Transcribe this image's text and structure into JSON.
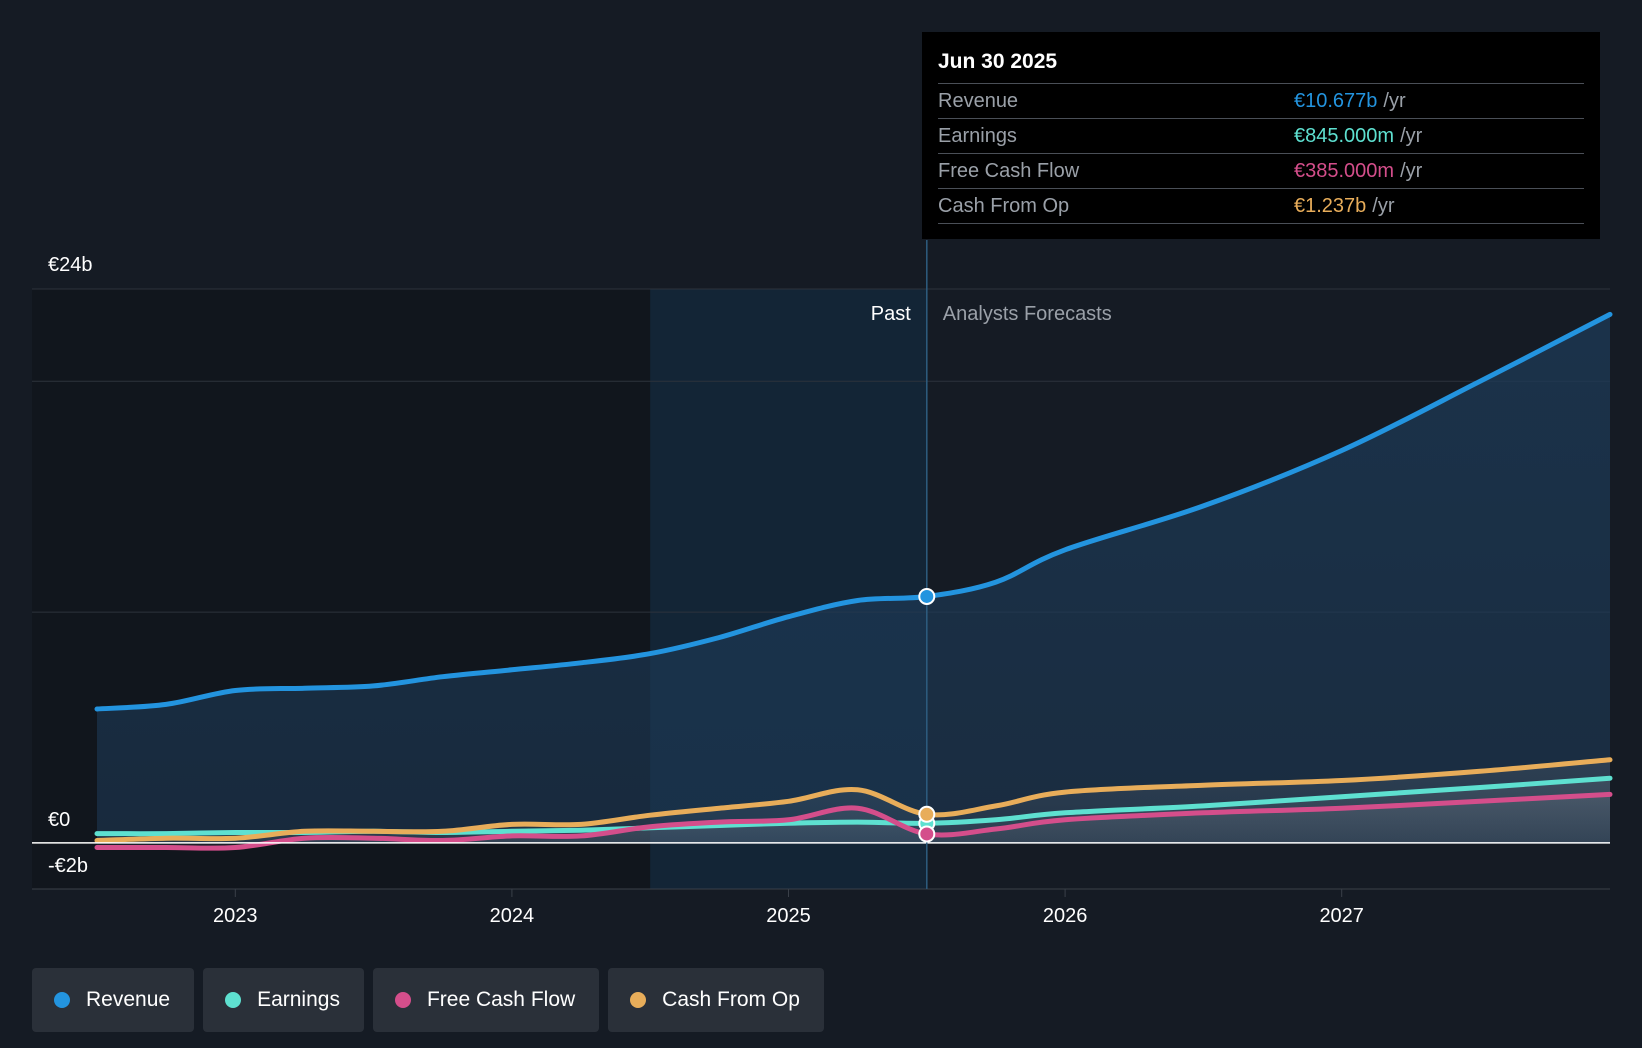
{
  "chart_data": {
    "type": "line",
    "currency": "€",
    "y_axis": {
      "top_label": "€24b",
      "zero_label": "€0",
      "bottom_label": "-€2b",
      "ylim": [
        -2,
        24
      ]
    },
    "x_axis": {
      "ticks": [
        "2023",
        "2024",
        "2025",
        "2026",
        "2027"
      ],
      "xlim": [
        2022.5,
        2027.97
      ]
    },
    "regions": {
      "past_label": "Past",
      "forecast_label": "Analysts Forecasts",
      "past_highlight_start": 2024.5,
      "divider": 2025.5
    },
    "series": [
      {
        "name": "Revenue",
        "color": "#2394df",
        "x": [
          2022.5,
          2022.75,
          2023.0,
          2023.25,
          2023.5,
          2023.75,
          2024.0,
          2024.25,
          2024.5,
          2024.75,
          2025.0,
          2025.25,
          2025.5,
          2025.75,
          2026.0,
          2026.5,
          2027.0,
          2027.5,
          2027.97
        ],
        "values": [
          5.8,
          6.0,
          6.6,
          6.7,
          6.8,
          7.2,
          7.5,
          7.8,
          8.2,
          8.9,
          9.8,
          10.5,
          10.677,
          11.3,
          12.7,
          14.6,
          17.0,
          20.0,
          22.9
        ]
      },
      {
        "name": "Earnings",
        "color": "#5ee0d0",
        "x": [
          2022.5,
          2022.75,
          2023.0,
          2023.25,
          2023.5,
          2023.75,
          2024.0,
          2024.25,
          2024.5,
          2024.75,
          2025.0,
          2025.25,
          2025.5,
          2025.75,
          2026.0,
          2026.5,
          2027.0,
          2027.5,
          2027.97
        ],
        "values": [
          0.4,
          0.4,
          0.45,
          0.45,
          0.5,
          0.45,
          0.5,
          0.55,
          0.65,
          0.75,
          0.85,
          0.9,
          0.845,
          1.0,
          1.3,
          1.6,
          2.0,
          2.4,
          2.8
        ]
      },
      {
        "name": "Free Cash Flow",
        "color": "#d44e8b",
        "x": [
          2022.5,
          2022.75,
          2023.0,
          2023.25,
          2023.5,
          2023.75,
          2024.0,
          2024.25,
          2024.5,
          2024.75,
          2025.0,
          2025.25,
          2025.5,
          2025.75,
          2026.0,
          2026.5,
          2027.0,
          2027.5,
          2027.97
        ],
        "values": [
          -0.2,
          -0.2,
          -0.2,
          0.2,
          0.2,
          0.1,
          0.3,
          0.3,
          0.7,
          0.9,
          1.0,
          1.5,
          0.385,
          0.6,
          1.0,
          1.3,
          1.5,
          1.8,
          2.1
        ]
      },
      {
        "name": "Cash From Op",
        "color": "#e8ad5a",
        "x": [
          2022.5,
          2022.75,
          2023.0,
          2023.25,
          2023.5,
          2023.75,
          2024.0,
          2024.25,
          2024.5,
          2024.75,
          2025.0,
          2025.25,
          2025.5,
          2025.75,
          2026.0,
          2026.5,
          2027.0,
          2027.5,
          2027.97
        ],
        "values": [
          0.1,
          0.2,
          0.2,
          0.5,
          0.5,
          0.5,
          0.8,
          0.8,
          1.2,
          1.5,
          1.8,
          2.3,
          1.237,
          1.6,
          2.2,
          2.5,
          2.7,
          3.1,
          3.6
        ]
      }
    ],
    "highlight": {
      "date": "Jun 30 2025",
      "x": 2025.5,
      "rows": [
        {
          "name": "Revenue",
          "value": "€10.677b",
          "unit": "/yr",
          "color": "#2394df"
        },
        {
          "name": "Earnings",
          "value": "€845.000m",
          "unit": "/yr",
          "color": "#5ee0d0"
        },
        {
          "name": "Free Cash Flow",
          "value": "€385.000m",
          "unit": "/yr",
          "color": "#d44e8b"
        },
        {
          "name": "Cash From Op",
          "value": "€1.237b",
          "unit": "/yr",
          "color": "#e8ad5a"
        }
      ]
    },
    "legend": [
      {
        "label": "Revenue",
        "color": "#2394df"
      },
      {
        "label": "Earnings",
        "color": "#5ee0d0"
      },
      {
        "label": "Free Cash Flow",
        "color": "#d44e8b"
      },
      {
        "label": "Cash From Op",
        "color": "#e8ad5a"
      }
    ]
  }
}
